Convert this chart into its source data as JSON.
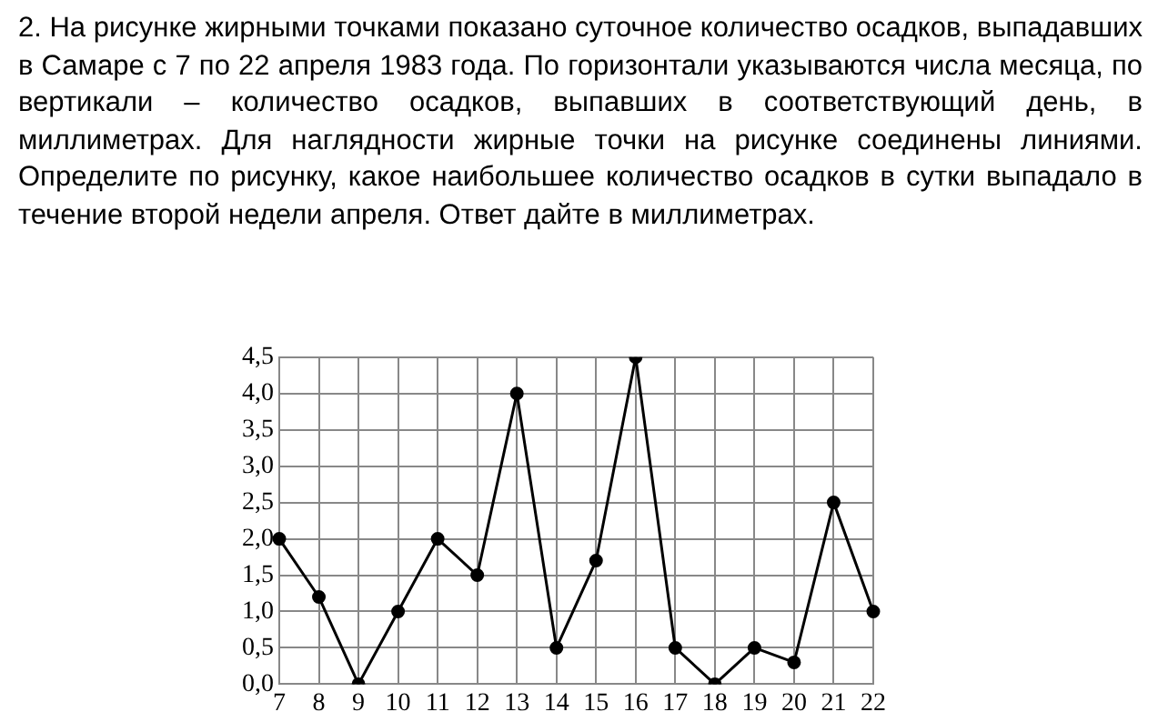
{
  "chart_data": {
    "type": "line",
    "title": "2. На рисунке жирными точками показано суточное количество осадков, выпадавших в Самаре с 7 по 22 апреля 1983 года. По горизонтали указываются числа месяца, по вертикали – количество осадков, выпавших в соответствующий день, в миллиметрах. Для наглядности жирные точки на рисунке соединены линиями. Определите по рисунку, какое наибольшее количество осадков в сутки выпадало в течение второй недели апреля. Ответ дайте в миллиметрах.",
    "categories": [
      "7",
      "8",
      "9",
      "10",
      "11",
      "12",
      "13",
      "14",
      "15",
      "16",
      "17",
      "18",
      "19",
      "20",
      "21",
      "22"
    ],
    "series": [
      {
        "color": "#000000",
        "values": [
          2,
          1.2,
          0,
          1,
          2,
          1.5,
          4,
          0.5,
          1.7,
          4.5,
          0.5,
          0,
          0.5,
          0.3,
          2.5,
          1
        ]
      }
    ],
    "ylim": [
      0,
      4.5
    ],
    "yticks": [
      {
        "value": 0,
        "label": "0,0"
      },
      {
        "value": 0.5,
        "label": "0,5"
      },
      {
        "value": 1,
        "label": "1,0"
      },
      {
        "value": 1.5,
        "label": "1,5"
      },
      {
        "value": 2,
        "label": "2,0"
      },
      {
        "value": 2.5,
        "label": "2,5"
      },
      {
        "value": 3,
        "label": "3,0"
      },
      {
        "value": 3.5,
        "label": "3,5"
      },
      {
        "value": 4,
        "label": "4,0"
      },
      {
        "value": 4.5,
        "label": "4,5"
      }
    ],
    "grid": true,
    "legend": false,
    "marker": "circle",
    "line_style": "solid"
  }
}
